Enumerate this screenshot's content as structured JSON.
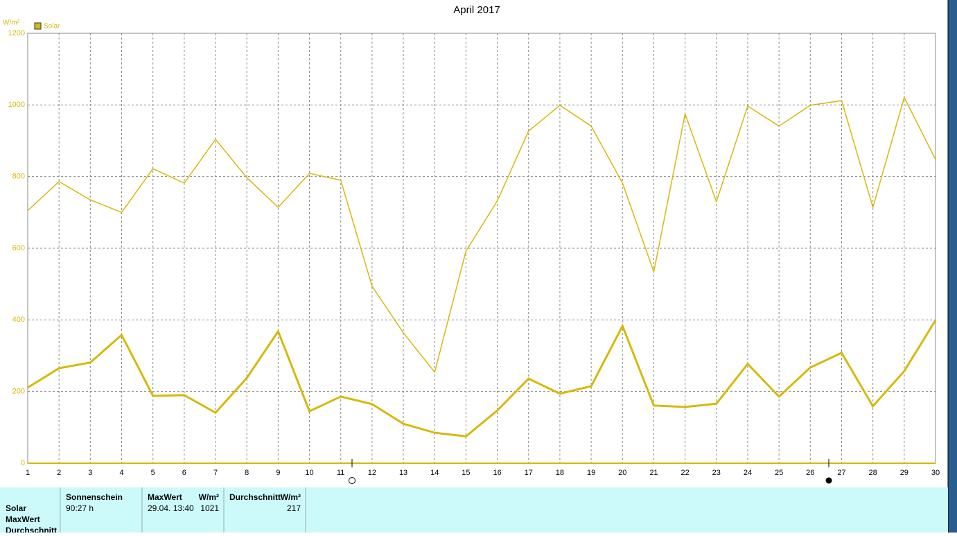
{
  "chart_data": {
    "type": "line",
    "title": "April 2017",
    "y_unit": "W/m²",
    "legend": "Solar",
    "x": [
      1,
      2,
      3,
      4,
      5,
      6,
      7,
      8,
      9,
      10,
      11,
      12,
      13,
      14,
      15,
      16,
      17,
      18,
      19,
      20,
      21,
      22,
      23,
      24,
      25,
      26,
      27,
      28,
      29,
      30
    ],
    "xlim": [
      1,
      30
    ],
    "xticks": [
      1,
      2,
      3,
      4,
      5,
      6,
      7,
      8,
      9,
      10,
      11,
      12,
      13,
      14,
      15,
      16,
      17,
      18,
      19,
      20,
      21,
      22,
      23,
      24,
      25,
      26,
      27,
      28,
      29,
      30
    ],
    "ylim": [
      0,
      1200
    ],
    "yticks": [
      0,
      200,
      400,
      600,
      800,
      1000,
      1200
    ],
    "grid": true,
    "series": [
      {
        "color": "#d6b90a",
        "width": 1.5,
        "values": [
          705,
          786,
          735,
          700,
          822,
          782,
          904,
          797,
          714,
          809,
          790,
          494,
          364,
          254,
          592,
          732,
          927,
          999,
          941,
          782,
          534,
          975,
          730,
          997,
          941,
          999,
          1012,
          714,
          1021,
          848
        ]
      },
      {
        "color": "#d6b90a",
        "width": 3,
        "values": [
          211,
          265,
          281,
          358,
          188,
          190,
          141,
          238,
          368,
          145,
          186,
          165,
          110,
          85,
          75,
          147,
          236,
          194,
          215,
          383,
          161,
          157,
          166,
          277,
          186,
          267,
          308,
          159,
          257,
          399
        ]
      }
    ]
  },
  "stats": {
    "rows": [
      "Solar",
      "MaxWert",
      "Durchschnitt"
    ],
    "sun_header": "Sonnenschein",
    "sun_value": "90:27 h",
    "max_header": "MaxWert",
    "max_unit": "W/m²",
    "max_time": "29.04.  13:40",
    "max_value": "1021",
    "avg_header": "Durchschnitt",
    "avg_unit": "W/m²",
    "avg_value": "217"
  }
}
